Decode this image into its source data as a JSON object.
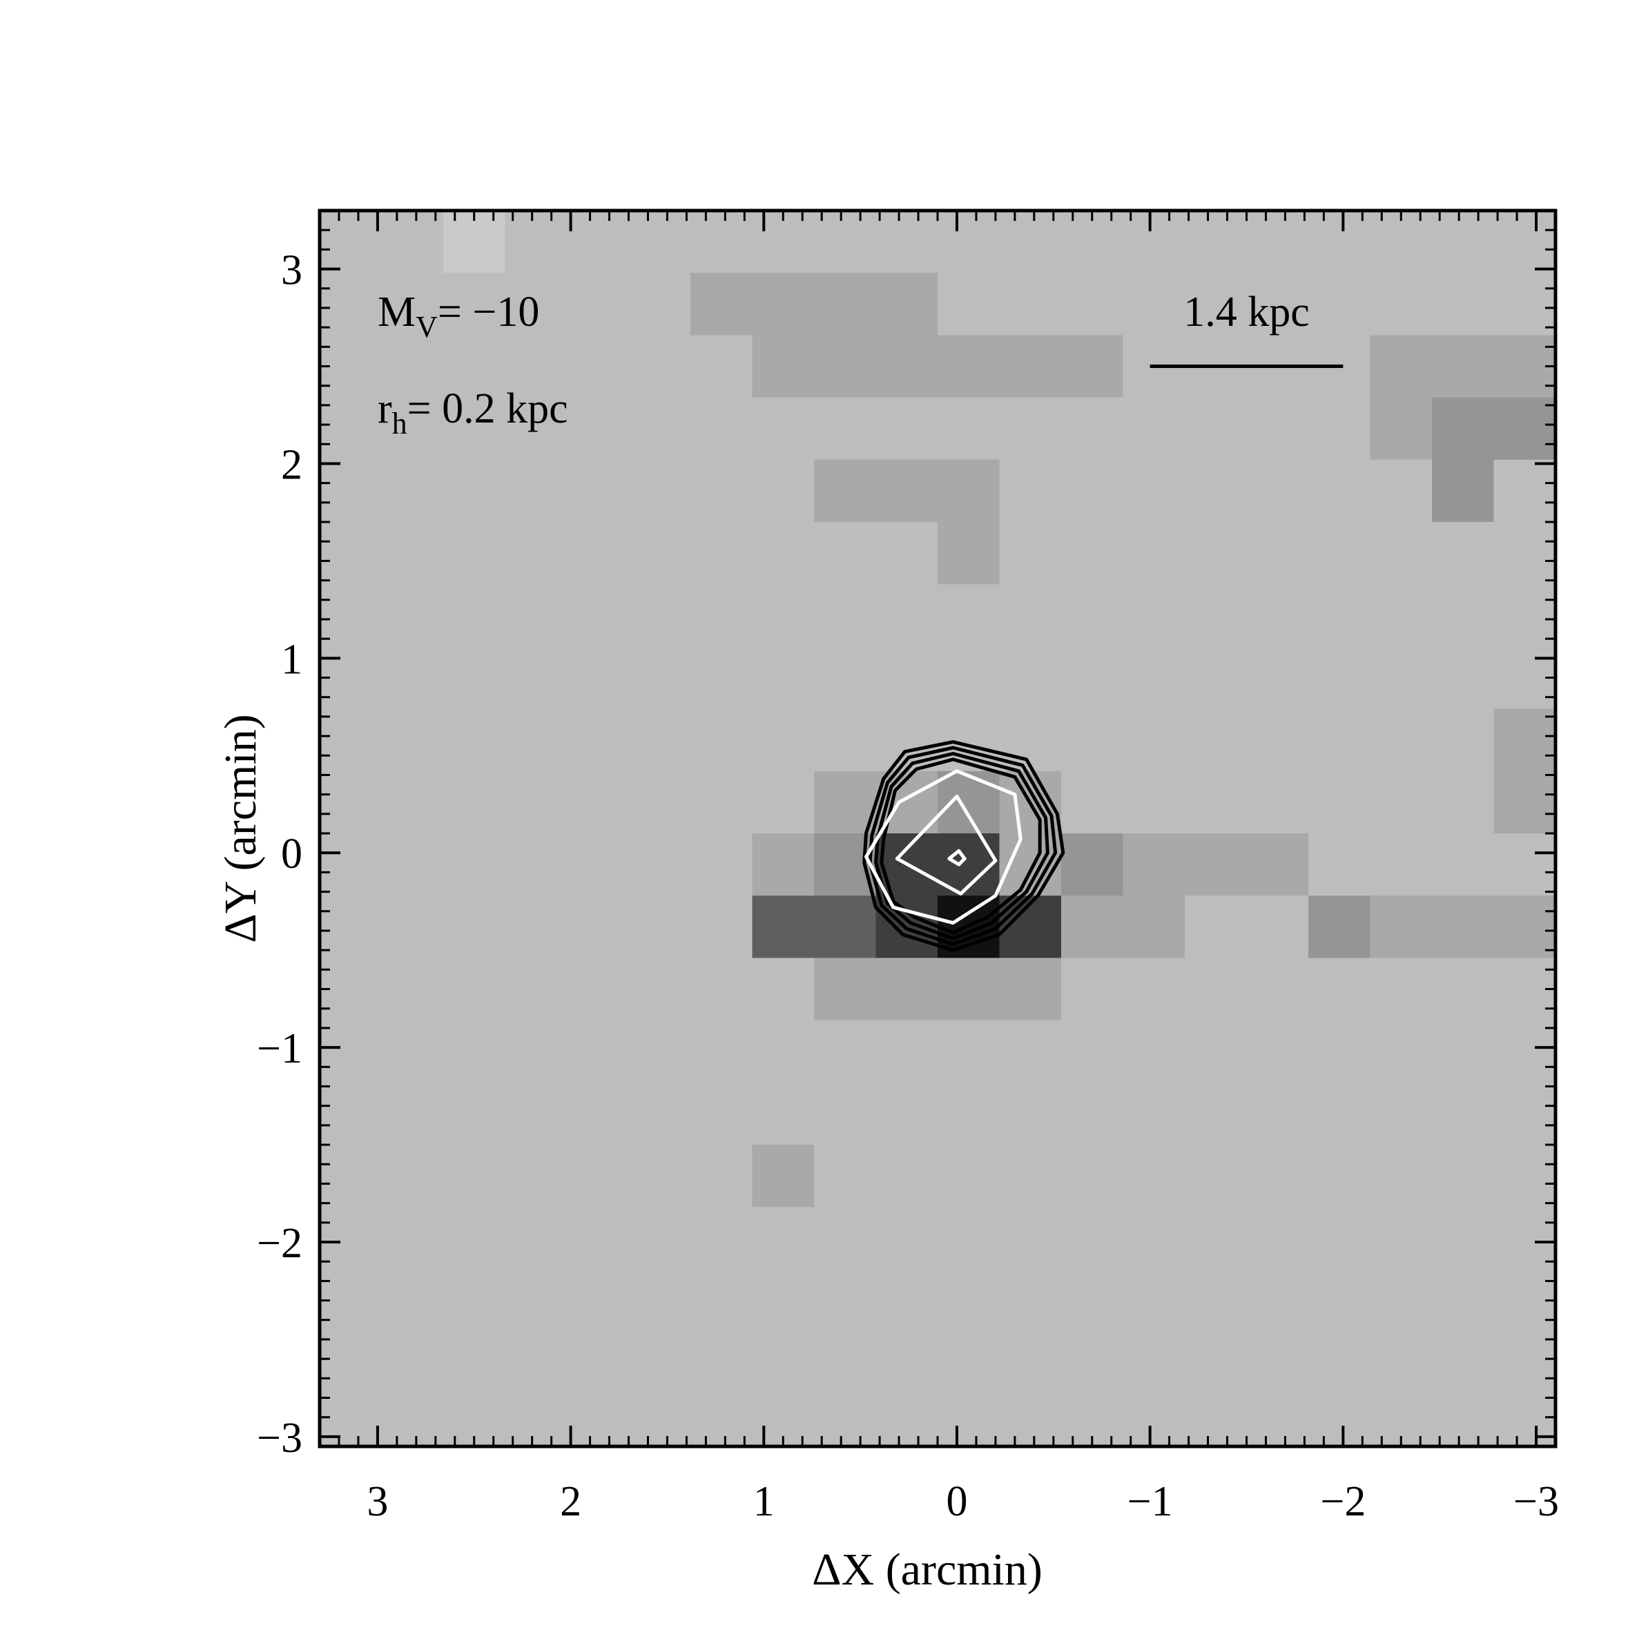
{
  "chart_data": {
    "type": "heatmap",
    "xlabel": "ΔX (arcmin)",
    "ylabel": "ΔY (arcmin)",
    "xlim": [
      3.3,
      -3.1
    ],
    "ylim": [
      -3.05,
      3.3
    ],
    "xticks": [
      3,
      2,
      1,
      0,
      -1,
      -2,
      -3
    ],
    "yticks": [
      3,
      2,
      1,
      0,
      -1,
      -2,
      -3
    ],
    "xtick_labels": [
      "3",
      "2",
      "1",
      "0",
      "−1",
      "−2",
      "−3"
    ],
    "ytick_labels": [
      "3",
      "2",
      "1",
      "0",
      "−1",
      "−2",
      "−3"
    ],
    "annotation_mv": {
      "base": "M",
      "sub": "V",
      "rest": "= −10"
    },
    "annotation_rh": {
      "base": "r",
      "sub": "h",
      "rest": "= 0.2 kpc"
    },
    "scale_bar": {
      "label": "1.4 kpc",
      "x_from": -1.0,
      "x_to": -2.0,
      "y": 2.5
    },
    "grid_x0": 3.3,
    "grid_y0": 3.3,
    "grid_step": 0.32,
    "palette": {
      "1": "#cacaca",
      "2": "#bdbdbd",
      "3": "#a9a9a9",
      "4": "#959595",
      "5": "#5f5f5f",
      "6": "#3e3e3e",
      "7": "#111111"
    },
    "density_levels": [
      "22122222222222222222",
      "22222233332222222222",
      "22222223333332222333",
      "22222222222222222344",
      "22222222333222222242",
      "22222222223222222222",
      "22222222222222222222",
      "22222222222222222222",
      "22222222222222222223",
      "22222222334322222223",
      "22222223466343332222",
      "22222225567633224333",
      "22222222333322222222",
      "22222222222222222222",
      "22222222222222222222",
      "22222223222222222222",
      "22222222222222222222",
      "22222222222222222222",
      "22222222222222222222",
      "22222222222222222222"
    ],
    "contours": [
      {
        "color": "#000000",
        "points": [
          [
            0.02,
            0.57
          ],
          [
            0.27,
            0.52
          ],
          [
            0.38,
            0.38
          ],
          [
            0.47,
            0.1
          ],
          [
            0.48,
            -0.05
          ],
          [
            0.42,
            -0.28
          ],
          [
            0.28,
            -0.42
          ],
          [
            0.02,
            -0.5
          ],
          [
            -0.22,
            -0.42
          ],
          [
            -0.42,
            -0.22
          ],
          [
            -0.55,
            0.0
          ],
          [
            -0.52,
            0.2
          ],
          [
            -0.36,
            0.48
          ]
        ]
      },
      {
        "color": "#000000",
        "points": [
          [
            0.02,
            0.54
          ],
          [
            0.25,
            0.49
          ],
          [
            0.36,
            0.36
          ],
          [
            0.44,
            0.09
          ],
          [
            0.45,
            -0.05
          ],
          [
            0.39,
            -0.27
          ],
          [
            0.26,
            -0.39
          ],
          [
            0.02,
            -0.47
          ],
          [
            -0.2,
            -0.39
          ],
          [
            -0.39,
            -0.21
          ],
          [
            -0.51,
            0.0
          ],
          [
            -0.49,
            0.19
          ],
          [
            -0.34,
            0.45
          ]
        ]
      },
      {
        "color": "#000000",
        "points": [
          [
            0.02,
            0.51
          ],
          [
            0.23,
            0.46
          ],
          [
            0.34,
            0.34
          ],
          [
            0.41,
            0.08
          ],
          [
            0.42,
            -0.05
          ],
          [
            0.36,
            -0.26
          ],
          [
            0.24,
            -0.36
          ],
          [
            0.02,
            -0.44
          ],
          [
            -0.18,
            -0.36
          ],
          [
            -0.36,
            -0.2
          ],
          [
            -0.47,
            0.0
          ],
          [
            -0.46,
            0.18
          ],
          [
            -0.32,
            0.42
          ]
        ]
      },
      {
        "color": "#000000",
        "points": [
          [
            0.02,
            0.48
          ],
          [
            0.21,
            0.43
          ],
          [
            0.32,
            0.32
          ],
          [
            0.38,
            0.07
          ],
          [
            0.39,
            -0.05
          ],
          [
            0.33,
            -0.25
          ],
          [
            0.22,
            -0.33
          ],
          [
            0.02,
            -0.41
          ],
          [
            -0.16,
            -0.33
          ],
          [
            -0.33,
            -0.19
          ],
          [
            -0.43,
            0.0
          ],
          [
            -0.43,
            0.17
          ],
          [
            -0.3,
            0.39
          ]
        ]
      },
      {
        "color": "#ffffff",
        "points": [
          [
            0.0,
            0.42
          ],
          [
            0.3,
            0.26
          ],
          [
            0.47,
            -0.02
          ],
          [
            0.33,
            -0.28
          ],
          [
            0.02,
            -0.36
          ],
          [
            -0.2,
            -0.22
          ],
          [
            -0.33,
            0.07
          ],
          [
            -0.3,
            0.3
          ]
        ]
      },
      {
        "color": "#ffffff",
        "points": [
          [
            0.0,
            0.29
          ],
          [
            0.31,
            -0.03
          ],
          [
            -0.02,
            -0.21
          ],
          [
            -0.2,
            -0.04
          ]
        ]
      },
      {
        "color": "#ffffff",
        "points": [
          [
            -0.01,
            0.01
          ],
          [
            0.04,
            -0.03
          ],
          [
            -0.01,
            -0.06
          ],
          [
            -0.04,
            -0.03
          ]
        ]
      }
    ]
  }
}
